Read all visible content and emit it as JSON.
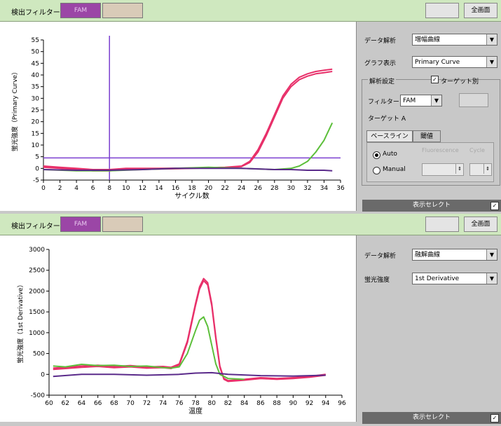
{
  "toolbar": {
    "filter_label": "検出フィルター",
    "filter_fam": "FAM",
    "filter_other": "",
    "disabled_button": "",
    "fullscreen_button": "全画面"
  },
  "top": {
    "analysis_label": "データ解析",
    "analysis_value": "増幅曲線",
    "graph_label": "グラフ表示",
    "graph_value": "Primary Curve",
    "settings_title": "解析設定",
    "target_checkbox_label": "ターゲット別",
    "filter_label": "フィルター",
    "filter_value": "FAM",
    "apply_button": "",
    "target_label": "ターゲット A",
    "tab_baseline": "ベースライン",
    "tab_threshold": "閾値",
    "auto_label": "Auto",
    "manual_label": "Manual",
    "fluorescence_label": "Fluorescence",
    "cycle_label": "Cycle",
    "fluorescence_value": "",
    "cycle_value": "",
    "select_bar": "表示セレクト",
    "select_check": "✓"
  },
  "bottom": {
    "analysis_label": "データ解析",
    "analysis_value": "融解曲線",
    "intensity_label": "蛍光強度",
    "intensity_value": "1st Derivative",
    "select_bar": "表示セレクト",
    "select_check": "✓"
  },
  "colors": {
    "pink": "#e8306a",
    "green": "#5cbf3a",
    "purple": "#5a2a8a",
    "threshold": "#7b3fd0"
  },
  "chart_data": [
    {
      "type": "line",
      "xlabel": "サイクル数",
      "ylabel": "蛍光強度（Primary Curve）",
      "xlim": [
        0,
        36
      ],
      "ylim": [
        -5,
        55
      ],
      "x_ticks": [
        0,
        2,
        4,
        6,
        8,
        10,
        12,
        14,
        16,
        18,
        20,
        22,
        24,
        26,
        28,
        30,
        32,
        34,
        36
      ],
      "y_ticks": [
        -5,
        0,
        5,
        10,
        15,
        20,
        25,
        30,
        35,
        40,
        45,
        50,
        55
      ],
      "threshold": 4.5,
      "vline": 8,
      "series": [
        {
          "color": "pink",
          "x": [
            0,
            2,
            4,
            6,
            8,
            10,
            14,
            18,
            22,
            24,
            25,
            26,
            27,
            28,
            29,
            30,
            31,
            32,
            33,
            34,
            35
          ],
          "y": [
            1,
            0.5,
            0,
            -0.5,
            -0.5,
            0,
            0,
            0.2,
            0.5,
            1,
            3,
            8,
            15,
            23,
            31,
            36,
            39,
            40.5,
            41.5,
            42,
            42.5
          ]
        },
        {
          "color": "pink",
          "x": [
            0,
            2,
            4,
            6,
            8,
            10,
            14,
            18,
            22,
            24,
            25,
            26,
            27,
            28,
            29,
            30,
            31,
            32,
            33,
            34,
            35
          ],
          "y": [
            0.5,
            0,
            -0.5,
            -1,
            -1,
            -0.5,
            -0.3,
            0,
            0.3,
            0.8,
            2.5,
            7,
            14,
            22,
            30,
            35,
            38,
            39.5,
            40.5,
            41,
            41.5
          ]
        },
        {
          "color": "green",
          "x": [
            0,
            4,
            8,
            12,
            16,
            20,
            24,
            28,
            30,
            31,
            32,
            33,
            34,
            35
          ],
          "y": [
            -0.5,
            -1,
            -1,
            -0.5,
            0,
            0.5,
            0,
            -0.5,
            0,
            1,
            3,
            7,
            12,
            19.5
          ]
        },
        {
          "color": "purple",
          "x": [
            0,
            4,
            8,
            12,
            16,
            20,
            24,
            28,
            30,
            32,
            34,
            35
          ],
          "y": [
            -0.5,
            -0.8,
            -0.8,
            -0.5,
            0,
            0,
            0,
            -0.5,
            -0.5,
            -0.8,
            -0.8,
            -1
          ]
        }
      ]
    },
    {
      "type": "line",
      "xlabel": "温度",
      "ylabel": "蛍光強度（1st Derivative）",
      "xlim": [
        60,
        96
      ],
      "ylim": [
        -500,
        3000
      ],
      "x_ticks": [
        60,
        62,
        64,
        66,
        68,
        70,
        72,
        74,
        76,
        78,
        80,
        82,
        84,
        86,
        88,
        90,
        92,
        94,
        96
      ],
      "y_ticks": [
        -500,
        0,
        500,
        1000,
        1500,
        2000,
        2500,
        3000
      ],
      "series": [
        {
          "color": "pink",
          "x": [
            60.5,
            62,
            64,
            66,
            68,
            70,
            72,
            74,
            75,
            76,
            77,
            78,
            78.5,
            79,
            79.5,
            80,
            80.5,
            81,
            81.5,
            82,
            84,
            86,
            88,
            90,
            92,
            94
          ],
          "y": [
            150,
            170,
            200,
            220,
            190,
            210,
            180,
            190,
            170,
            250,
            800,
            1700,
            2100,
            2300,
            2200,
            1700,
            900,
            200,
            -100,
            -150,
            -120,
            -80,
            -100,
            -80,
            -50,
            0
          ]
        },
        {
          "color": "pink",
          "x": [
            60.5,
            62,
            64,
            66,
            68,
            70,
            72,
            74,
            75,
            76,
            77,
            78,
            78.5,
            79,
            79.5,
            80,
            80.5,
            81,
            81.5,
            82,
            84,
            86,
            88,
            90,
            92,
            94
          ],
          "y": [
            120,
            140,
            170,
            190,
            160,
            180,
            150,
            160,
            140,
            220,
            760,
            1650,
            2050,
            2250,
            2150,
            1650,
            860,
            170,
            -120,
            -170,
            -140,
            -100,
            -120,
            -100,
            -70,
            -20
          ]
        },
        {
          "color": "green",
          "x": [
            60.5,
            62,
            64,
            66,
            68,
            70,
            72,
            74,
            75,
            76,
            77,
            78,
            78.5,
            79,
            79.5,
            80,
            80.5,
            81,
            82,
            84
          ],
          "y": [
            200,
            180,
            240,
            210,
            220,
            190,
            200,
            160,
            150,
            180,
            500,
            1050,
            1300,
            1380,
            1150,
            700,
            250,
            0,
            -100,
            -120
          ]
        },
        {
          "color": "purple",
          "x": [
            60.5,
            64,
            68,
            72,
            76,
            78,
            80,
            82,
            86,
            90,
            94
          ],
          "y": [
            -50,
            0,
            0,
            -20,
            0,
            30,
            40,
            0,
            -30,
            -40,
            -20
          ]
        }
      ]
    }
  ]
}
